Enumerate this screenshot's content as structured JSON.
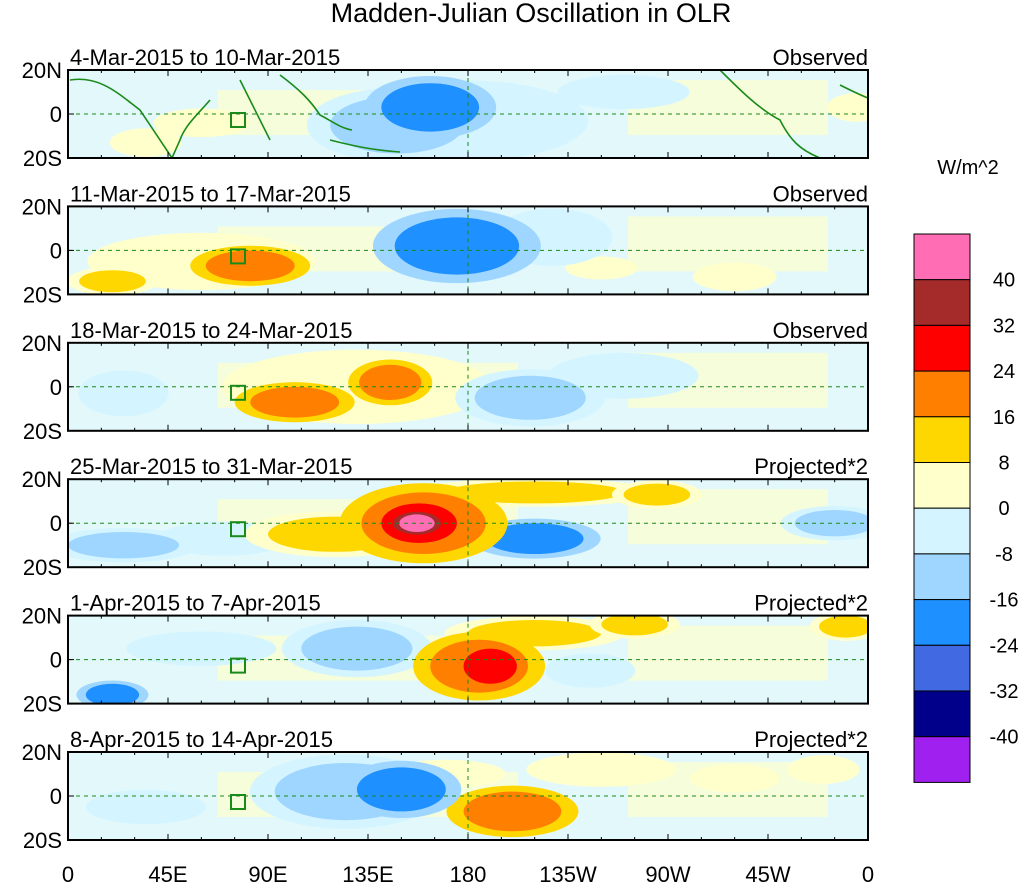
{
  "chart_data": {
    "type": "heatmap",
    "title": "Madden-Julian Oscillation in OLR",
    "colorbar": {
      "unit_label": "W/m^2",
      "tick_labels": [
        "40",
        "32",
        "24",
        "16",
        "8",
        "0",
        "-8",
        "-16",
        "-24",
        "-32",
        "-40"
      ],
      "colors": [
        "#ff6eb4",
        "#a52a2a",
        "#ff0000",
        "#ff7f00",
        "#ffd700",
        "#ffffcc",
        "#d4f5ff",
        "#9fd6ff",
        "#1e90ff",
        "#4169e1",
        "#00008b",
        "#a020f0"
      ]
    },
    "x_axis": {
      "tick_labels": [
        "0",
        "45E",
        "90E",
        "135E",
        "180",
        "135W",
        "90W",
        "45W",
        "0"
      ],
      "values": [
        0,
        45,
        90,
        135,
        180,
        225,
        270,
        315,
        360
      ]
    },
    "y_axis": {
      "tick_labels": [
        "20N",
        "0",
        "20S"
      ],
      "values": [
        20,
        0,
        -20
      ]
    },
    "panels": [
      {
        "date_range": "4-Mar-2015 to 10-Mar-2015",
        "status": "Observed",
        "anomalies": [
          {
            "lon": 163,
            "lat": 3,
            "rx": 22,
            "ry": 11,
            "value": -20
          },
          {
            "lon": 148,
            "lat": -5,
            "rx": 30,
            "ry": 13,
            "value": -10
          },
          {
            "lon": 180,
            "lat": -3,
            "rx": 40,
            "ry": 14,
            "value": -6
          },
          {
            "lon": 250,
            "lat": 10,
            "rx": 22,
            "ry": 6,
            "value": -6
          },
          {
            "lon": 60,
            "lat": -4,
            "rx": 16,
            "ry": 5,
            "value": 6
          },
          {
            "lon": 35,
            "lat": -13,
            "rx": 12,
            "ry": 5,
            "value": 5
          },
          {
            "lon": 215,
            "lat": -4,
            "rx": 14,
            "ry": 5,
            "value": 5
          },
          {
            "lon": 355,
            "lat": 3,
            "rx": 10,
            "ry": 5,
            "value": 5
          }
        ]
      },
      {
        "date_range": "11-Mar-2015 to 17-Mar-2015",
        "status": "Observed",
        "anomalies": [
          {
            "lon": 82,
            "lat": -7,
            "rx": 20,
            "ry": 7,
            "value": 18
          },
          {
            "lon": 60,
            "lat": -5,
            "rx": 38,
            "ry": 10,
            "value": 7
          },
          {
            "lon": 20,
            "lat": -14,
            "rx": 15,
            "ry": 5,
            "value": 10
          },
          {
            "lon": 175,
            "lat": 2,
            "rx": 28,
            "ry": 13,
            "value": -18
          },
          {
            "lon": 218,
            "lat": 6,
            "rx": 20,
            "ry": 10,
            "value": -8
          },
          {
            "lon": 240,
            "lat": -8,
            "rx": 12,
            "ry": 4,
            "value": 6
          },
          {
            "lon": 300,
            "lat": -12,
            "rx": 14,
            "ry": 5,
            "value": 5
          }
        ]
      },
      {
        "date_range": "18-Mar-2015 to 24-Mar-2015",
        "status": "Observed",
        "anomalies": [
          {
            "lon": 102,
            "lat": -7,
            "rx": 20,
            "ry": 7,
            "value": 16
          },
          {
            "lon": 145,
            "lat": 2,
            "rx": 14,
            "ry": 8,
            "value": 17
          },
          {
            "lon": 130,
            "lat": 0,
            "rx": 45,
            "ry": 13,
            "value": 6
          },
          {
            "lon": 208,
            "lat": -5,
            "rx": 25,
            "ry": 10,
            "value": -10
          },
          {
            "lon": 250,
            "lat": 5,
            "rx": 25,
            "ry": 8,
            "value": -6
          },
          {
            "lon": 25,
            "lat": -3,
            "rx": 15,
            "ry": 8,
            "value": -6
          }
        ]
      },
      {
        "date_range": "25-Mar-2015 to 31-Mar-2015",
        "status": "Projected*2",
        "anomalies": [
          {
            "lon": 160,
            "lat": 0,
            "rx": 28,
            "ry": 14,
            "value": 22
          },
          {
            "lon": 158,
            "lat": 0,
            "rx": 17,
            "ry": 9,
            "value": 30
          },
          {
            "lon": 157,
            "lat": 0,
            "rx": 8,
            "ry": 4,
            "value": 42
          },
          {
            "lon": 120,
            "lat": -5,
            "rx": 30,
            "ry": 8,
            "value": 12
          },
          {
            "lon": 210,
            "lat": 14,
            "rx": 40,
            "ry": 5,
            "value": 10
          },
          {
            "lon": 265,
            "lat": 13,
            "rx": 15,
            "ry": 5,
            "value": 10
          },
          {
            "lon": 210,
            "lat": -7,
            "rx": 22,
            "ry": 7,
            "value": -18
          },
          {
            "lon": 25,
            "lat": -10,
            "rx": 25,
            "ry": 6,
            "value": -10
          },
          {
            "lon": 345,
            "lat": 0,
            "rx": 18,
            "ry": 6,
            "value": -10
          },
          {
            "lon": 70,
            "lat": -7,
            "rx": 22,
            "ry": 6,
            "value": -8
          }
        ]
      },
      {
        "date_range": "1-Apr-2015 to 7-Apr-2015",
        "status": "Projected*2",
        "anomalies": [
          {
            "lon": 185,
            "lat": -3,
            "rx": 22,
            "ry": 12,
            "value": 22
          },
          {
            "lon": 190,
            "lat": -3,
            "rx": 12,
            "ry": 8,
            "value": 28
          },
          {
            "lon": 210,
            "lat": 12,
            "rx": 30,
            "ry": 6,
            "value": 8
          },
          {
            "lon": 255,
            "lat": 16,
            "rx": 15,
            "ry": 5,
            "value": 14
          },
          {
            "lon": 350,
            "lat": 15,
            "rx": 12,
            "ry": 5,
            "value": 12
          },
          {
            "lon": 20,
            "lat": -16,
            "rx": 12,
            "ry": 5,
            "value": -22
          },
          {
            "lon": 130,
            "lat": 5,
            "rx": 25,
            "ry": 10,
            "value": -10
          },
          {
            "lon": 235,
            "lat": -5,
            "rx": 15,
            "ry": 6,
            "value": -8
          },
          {
            "lon": 60,
            "lat": 5,
            "rx": 25,
            "ry": 6,
            "value": -5
          }
        ]
      },
      {
        "date_range": "8-Apr-2015 to 14-Apr-2015",
        "status": "Projected*2",
        "anomalies": [
          {
            "lon": 200,
            "lat": -7,
            "rx": 22,
            "ry": 9,
            "value": 16
          },
          {
            "lon": 170,
            "lat": 10,
            "rx": 20,
            "ry": 5,
            "value": 6
          },
          {
            "lon": 150,
            "lat": 3,
            "rx": 20,
            "ry": 10,
            "value": -18
          },
          {
            "lon": 125,
            "lat": 2,
            "rx": 32,
            "ry": 13,
            "value": -10
          },
          {
            "lon": 240,
            "lat": 12,
            "rx": 25,
            "ry": 6,
            "value": 7
          },
          {
            "lon": 300,
            "lat": 8,
            "rx": 15,
            "ry": 5,
            "value": 6
          },
          {
            "lon": 340,
            "lat": 12,
            "rx": 12,
            "ry": 5,
            "value": 6
          },
          {
            "lon": 35,
            "lat": -5,
            "rx": 20,
            "ry": 6,
            "value": -6
          }
        ]
      }
    ]
  }
}
